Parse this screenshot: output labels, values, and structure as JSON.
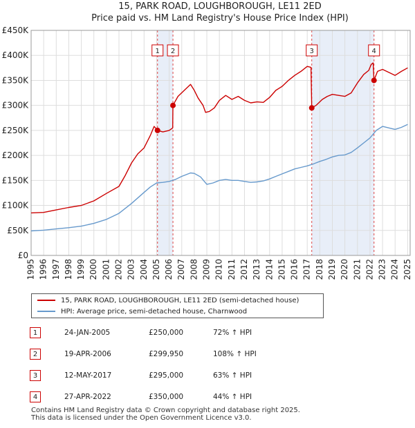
{
  "chart_data": {
    "type": "line",
    "title": "15, PARK ROAD, LOUGHBOROUGH, LE11 2ED",
    "subtitle": "Price paid vs. HM Land Registry's House Price Index (HPI)",
    "xlim": [
      1995,
      2025.2
    ],
    "ylim": [
      0,
      450000
    ],
    "x_tick_labels": [
      "1995",
      "1996",
      "1997",
      "1998",
      "1999",
      "2000",
      "2001",
      "2002",
      "2003",
      "2004",
      "2005",
      "2006",
      "2007",
      "2008",
      "2009",
      "2010",
      "2011",
      "2012",
      "2013",
      "2014",
      "2015",
      "2016",
      "2017",
      "2018",
      "2019",
      "2020",
      "2021",
      "2022",
      "2023",
      "2024",
      "2025"
    ],
    "y_tick_values": [
      0,
      50000,
      100000,
      150000,
      200000,
      250000,
      300000,
      350000,
      400000,
      450000
    ],
    "y_tick_labels": [
      "£0",
      "£50K",
      "£100K",
      "£150K",
      "£200K",
      "£250K",
      "£300K",
      "£350K",
      "£400K",
      "£450K"
    ],
    "grid": true,
    "shaded_ranges": [
      [
        2005.07,
        2006.3
      ],
      [
        2017.36,
        2022.32
      ]
    ],
    "series": [
      {
        "name": "15, PARK ROAD, LOUGHBOROUGH, LE11 2ED (semi-detached house)",
        "color": "#cc0000",
        "points": [
          [
            1995.0,
            85000
          ],
          [
            1996.0,
            86000
          ],
          [
            1997.0,
            91000
          ],
          [
            1998.0,
            96000
          ],
          [
            1999.0,
            100000
          ],
          [
            2000.0,
            109000
          ],
          [
            2001.0,
            124000
          ],
          [
            2002.0,
            138000
          ],
          [
            2002.5,
            160000
          ],
          [
            2003.0,
            185000
          ],
          [
            2003.5,
            203000
          ],
          [
            2004.0,
            215000
          ],
          [
            2004.5,
            240000
          ],
          [
            2004.8,
            258000
          ],
          [
            2005.07,
            250000
          ],
          [
            2005.5,
            247000
          ],
          [
            2006.0,
            250000
          ],
          [
            2006.28,
            255000
          ],
          [
            2006.3,
            299950
          ],
          [
            2006.7,
            318000
          ],
          [
            2007.2,
            330000
          ],
          [
            2007.7,
            342000
          ],
          [
            2008.0,
            330000
          ],
          [
            2008.3,
            315000
          ],
          [
            2008.7,
            300000
          ],
          [
            2008.9,
            286000
          ],
          [
            2009.2,
            288000
          ],
          [
            2009.6,
            295000
          ],
          [
            2010.0,
            310000
          ],
          [
            2010.5,
            320000
          ],
          [
            2011.0,
            312000
          ],
          [
            2011.5,
            318000
          ],
          [
            2012.0,
            310000
          ],
          [
            2012.5,
            305000
          ],
          [
            2013.0,
            307000
          ],
          [
            2013.5,
            306000
          ],
          [
            2014.0,
            316000
          ],
          [
            2014.5,
            330000
          ],
          [
            2015.0,
            338000
          ],
          [
            2015.5,
            350000
          ],
          [
            2016.0,
            360000
          ],
          [
            2016.5,
            368000
          ],
          [
            2017.0,
            378000
          ],
          [
            2017.3,
            376000
          ],
          [
            2017.36,
            295000
          ],
          [
            2017.7,
            300000
          ],
          [
            2018.2,
            312000
          ],
          [
            2018.6,
            318000
          ],
          [
            2019.0,
            322000
          ],
          [
            2019.5,
            320000
          ],
          [
            2020.0,
            318000
          ],
          [
            2020.5,
            325000
          ],
          [
            2021.0,
            345000
          ],
          [
            2021.5,
            362000
          ],
          [
            2021.9,
            370000
          ],
          [
            2022.1,
            382000
          ],
          [
            2022.25,
            385000
          ],
          [
            2022.32,
            350000
          ],
          [
            2022.6,
            368000
          ],
          [
            2023.0,
            372000
          ],
          [
            2023.5,
            366000
          ],
          [
            2024.0,
            360000
          ],
          [
            2024.5,
            368000
          ],
          [
            2025.0,
            375000
          ]
        ]
      },
      {
        "name": "HPI: Average price, semi-detached house, Charnwood",
        "color": "#6699cc",
        "points": [
          [
            1995.0,
            49000
          ],
          [
            1996.0,
            50500
          ],
          [
            1997.0,
            53000
          ],
          [
            1998.0,
            55500
          ],
          [
            1999.0,
            58500
          ],
          [
            2000.0,
            64000
          ],
          [
            2001.0,
            72000
          ],
          [
            2002.0,
            84000
          ],
          [
            2003.0,
            104000
          ],
          [
            2004.0,
            126000
          ],
          [
            2004.5,
            137000
          ],
          [
            2005.0,
            145000
          ],
          [
            2005.5,
            146000
          ],
          [
            2006.0,
            148000
          ],
          [
            2006.5,
            152000
          ],
          [
            2007.0,
            158000
          ],
          [
            2007.7,
            165000
          ],
          [
            2008.0,
            164000
          ],
          [
            2008.5,
            157000
          ],
          [
            2009.0,
            142000
          ],
          [
            2009.5,
            145000
          ],
          [
            2010.0,
            150000
          ],
          [
            2010.5,
            152000
          ],
          [
            2011.0,
            150000
          ],
          [
            2011.5,
            150000
          ],
          [
            2012.0,
            148000
          ],
          [
            2012.5,
            146000
          ],
          [
            2013.0,
            147000
          ],
          [
            2013.5,
            149000
          ],
          [
            2014.0,
            153000
          ],
          [
            2014.5,
            158000
          ],
          [
            2015.0,
            163000
          ],
          [
            2015.5,
            168000
          ],
          [
            2016.0,
            173000
          ],
          [
            2016.5,
            176000
          ],
          [
            2017.0,
            179000
          ],
          [
            2017.5,
            183000
          ],
          [
            2018.0,
            188000
          ],
          [
            2018.5,
            192000
          ],
          [
            2019.0,
            197000
          ],
          [
            2019.5,
            200000
          ],
          [
            2020.0,
            201000
          ],
          [
            2020.5,
            206000
          ],
          [
            2021.0,
            215000
          ],
          [
            2021.5,
            225000
          ],
          [
            2022.0,
            235000
          ],
          [
            2022.5,
            250000
          ],
          [
            2023.0,
            258000
          ],
          [
            2023.5,
            255000
          ],
          [
            2024.0,
            252000
          ],
          [
            2024.5,
            256000
          ],
          [
            2025.0,
            262000
          ]
        ]
      }
    ],
    "sales": [
      {
        "num": "1",
        "x": 2005.07,
        "y": 250000
      },
      {
        "num": "2",
        "x": 2006.3,
        "y": 299950
      },
      {
        "num": "3",
        "x": 2017.36,
        "y": 295000
      },
      {
        "num": "4",
        "x": 2022.32,
        "y": 350000
      }
    ],
    "marker_box_value": 410000
  },
  "legend": {
    "property_label": "15, PARK ROAD, LOUGHBOROUGH, LE11 2ED (semi-detached house)",
    "hpi_label": "HPI: Average price, semi-detached house, Charnwood"
  },
  "transactions": [
    {
      "num": "1",
      "date": "24-JAN-2005",
      "price": "£250,000",
      "hpi": "72% ↑ HPI"
    },
    {
      "num": "2",
      "date": "19-APR-2006",
      "price": "£299,950",
      "hpi": "108% ↑ HPI"
    },
    {
      "num": "3",
      "date": "12-MAY-2017",
      "price": "£295,000",
      "hpi": "63% ↑ HPI"
    },
    {
      "num": "4",
      "date": "27-APR-2022",
      "price": "£350,000",
      "hpi": "44% ↑ HPI"
    }
  ],
  "footer": {
    "line1": "Contains HM Land Registry data © Crown copyright and database right 2025.",
    "line2": "This data is licensed under the Open Government Licence v3.0."
  },
  "colors": {
    "property": "#cc0000",
    "hpi": "#6699cc",
    "shade": "#e8eef8",
    "grid": "#dddddd"
  }
}
